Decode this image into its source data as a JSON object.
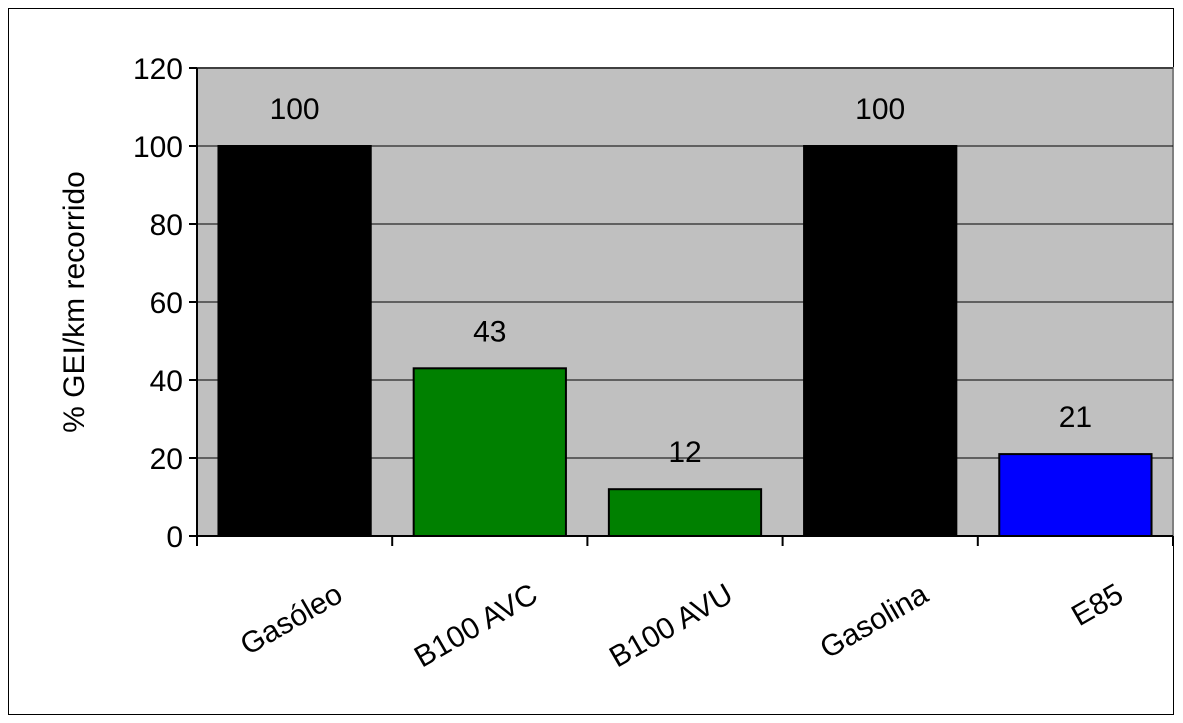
{
  "chart_data": {
    "type": "bar",
    "categories": [
      "Gasóleo",
      "B100 AVC",
      "B100 AVU",
      "Gasolina",
      "E85"
    ],
    "values": [
      100,
      43,
      12,
      100,
      21
    ],
    "data_labels": [
      "100",
      "43",
      "12",
      "100",
      "21"
    ],
    "bar_colors": [
      "#000000",
      "#008000",
      "#008000",
      "#000000",
      "#0000ff"
    ],
    "title": "",
    "xlabel": "",
    "ylabel": "% GEI/km recorrido",
    "ylim": [
      0,
      120
    ],
    "yticks": [
      0,
      20,
      40,
      60,
      80,
      100,
      120
    ],
    "ytick_labels": [
      "0",
      "20",
      "40",
      "60",
      "80",
      "100",
      "120"
    ],
    "grid": "horizontal",
    "plot_background": "#c0c0c0",
    "legend": "none"
  }
}
